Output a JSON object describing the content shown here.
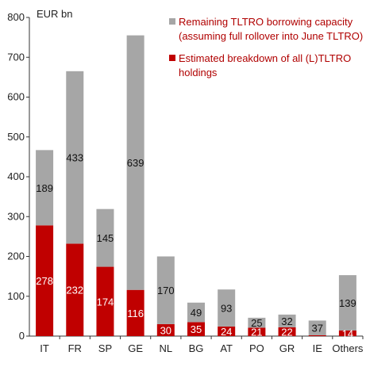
{
  "chart_data": {
    "type": "bar",
    "stacked": true,
    "unit_label": "EUR bn",
    "ylim": [
      0,
      800
    ],
    "yticks": [
      0,
      100,
      200,
      300,
      400,
      500,
      600,
      700,
      800
    ],
    "categories": [
      "IT",
      "FR",
      "SP",
      "GE",
      "NL",
      "BG",
      "AT",
      "PO",
      "GR",
      "IE",
      "Others"
    ],
    "series": [
      {
        "name": "Estimated breakdown of all (L)TLTRO holdings",
        "color": "#c00000",
        "values": [
          278,
          232,
          174,
          116,
          30,
          35,
          24,
          21,
          22,
          2,
          14
        ],
        "labels": [
          "278",
          "232",
          "174",
          "116",
          "30",
          "35",
          "24",
          "21",
          "22",
          "",
          "14"
        ]
      },
      {
        "name": "Remaining TLTRO borrowing capacity (assuming full rollover into June TLTRO)",
        "color": "#a6a6a6",
        "values": [
          189,
          433,
          145,
          639,
          170,
          49,
          93,
          25,
          32,
          37,
          139
        ],
        "labels": [
          "189",
          "433",
          "145",
          "639",
          "170",
          "49",
          "93",
          "25",
          "32",
          "37",
          "139"
        ]
      }
    ],
    "legend": [
      {
        "color": "#a6a6a6",
        "lines": [
          "Remaining TLTRO borrowing capacity",
          "(assuming full rollover into June TLTRO)"
        ]
      },
      {
        "color": "#c00000",
        "lines": [
          "Estimated breakdown of all (L)TLTRO",
          "holdings"
        ]
      }
    ],
    "legend_position": "top-right",
    "grid": false
  }
}
